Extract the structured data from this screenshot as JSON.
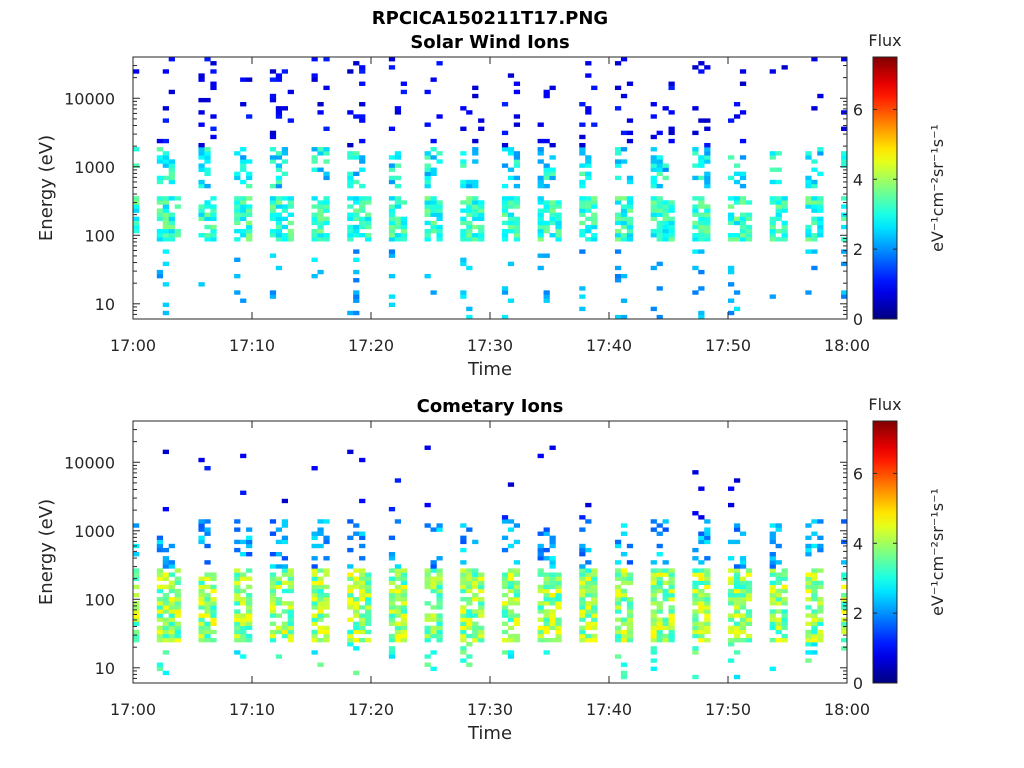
{
  "figure": {
    "title": "RPCICA150211T17.PNG",
    "colormap": "jet"
  },
  "chart_data": [
    {
      "type": "heatmap",
      "title": "Solar Wind Ions",
      "xlabel": "Time",
      "ylabel": "Energy (eV)",
      "x_range": [
        "17:00",
        "18:00"
      ],
      "x_ticks": [
        "17:00",
        "17:10",
        "17:20",
        "17:30",
        "17:40",
        "17:50",
        "18:00"
      ],
      "y_scale": "log",
      "y_range": [
        6,
        40000
      ],
      "y_ticks": [
        10,
        100,
        1000,
        10000
      ],
      "y_tick_labels": [
        "10",
        "100",
        "1000",
        "10000"
      ],
      "colorbar": {
        "label": "Flux",
        "unit_label": "eV⁻¹cm⁻²sr⁻¹s⁻¹",
        "range": [
          0,
          7.5
        ],
        "ticks": [
          0,
          2,
          4,
          6
        ],
        "tick_labels": [
          "0",
          "2",
          "4",
          "6"
        ]
      },
      "pattern": {
        "sweep_period_min": 3.2,
        "core_energy_band_eV": [
          80,
          350
        ],
        "core_flux": [
          2.5,
          3.8
        ],
        "high_energy_band_eV": [
          500,
          2000
        ],
        "high_flux": [
          2.0,
          3.5
        ],
        "sparse_high_tail_eV": [
          2000,
          40000
        ],
        "sparse_high_flux": [
          0.5,
          1.2
        ],
        "low_energy_band_eV": [
          6,
          60
        ],
        "low_flux": [
          1.8,
          2.8
        ]
      }
    },
    {
      "type": "heatmap",
      "title": "Cometary Ions",
      "xlabel": "Time",
      "ylabel": "Energy (eV)",
      "x_range": [
        "17:00",
        "18:00"
      ],
      "x_ticks": [
        "17:00",
        "17:10",
        "17:20",
        "17:30",
        "17:40",
        "17:50",
        "18:00"
      ],
      "y_scale": "log",
      "y_range": [
        6,
        40000
      ],
      "y_ticks": [
        10,
        100,
        1000,
        10000
      ],
      "y_tick_labels": [
        "10",
        "100",
        "1000",
        "10000"
      ],
      "colorbar": {
        "label": "Flux",
        "unit_label": "eV⁻¹cm⁻²sr⁻¹s⁻¹",
        "range": [
          0,
          7.5
        ],
        "ticks": [
          0,
          2,
          4,
          6
        ],
        "tick_labels": [
          "0",
          "2",
          "4",
          "6"
        ]
      },
      "pattern": {
        "sweep_period_min": 3.2,
        "core_energy_band_eV": [
          25,
          300
        ],
        "core_flux": [
          3.0,
          4.8
        ],
        "mid_energy_band_eV": [
          300,
          1500
        ],
        "mid_flux": [
          1.5,
          2.8
        ],
        "sparse_high_tail_eV": [
          1500,
          20000
        ],
        "sparse_high_flux": [
          0.5,
          1.2
        ],
        "low_energy_band_eV": [
          7,
          25
        ],
        "low_flux": [
          2.5,
          3.8
        ]
      }
    }
  ]
}
